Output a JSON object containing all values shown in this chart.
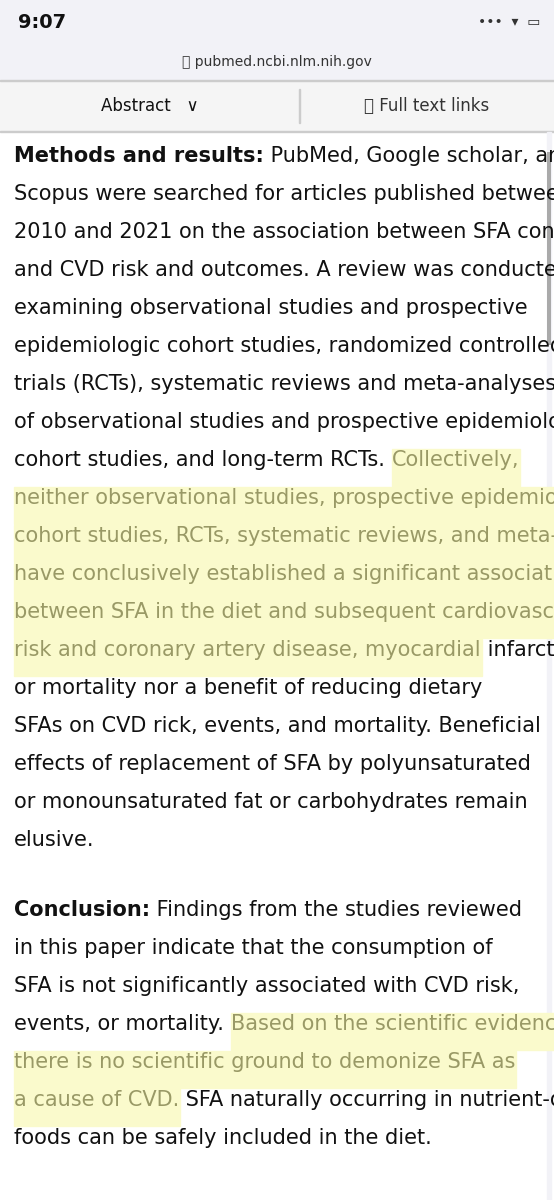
{
  "bg_color": "#ffffff",
  "status_bar_bg": "#f2f2f7",
  "status_bar_time": "9:07",
  "url_bar_bg": "#f2f2f7",
  "url_text": "pubmed.ncbi.nlm.nih.gov",
  "tab_bar_bg": "#f5f5f5",
  "tab_left": "Abstract",
  "tab_right": "Full text links",
  "highlight_color": "#fafacc",
  "highlight_text_color": "#999966",
  "normal_text_color": "#111111",
  "scrollbar_color": "#aaaaaa",
  "scrollbar_bg": "#f2f2f7",
  "separator_color": "#cccccc",
  "paragraphs": [
    {
      "segments": [
        {
          "text": "Methods and results:",
          "bold": true,
          "highlight": false
        },
        {
          "text": " PubMed, Google scholar, and Scopus were searched for articles published between 2010 and 2021 on the association between SFA consumption and CVD risk and outcomes. A review was conducted examining observational studies and prospective epidemiologic cohort studies, randomized controlled trials (RCTs), systematic reviews and meta-analyses of observational studies and prospective epidemiologic cohort studies, and long-term RCTs. ",
          "bold": false,
          "highlight": false
        },
        {
          "text": "Collectively, neither observational studies, prospective epidemiologic cohort studies, RCTs, systematic reviews, and meta-analyses have conclusively established a significant association between SFA in the diet and subsequent cardiovascular risk and coronary artery disease, myocardial",
          "bold": false,
          "highlight": true
        },
        {
          "text": " infarction, or mortality nor a benefit of reducing dietary SFAs on CVD rick, events, and mortality. Beneficial effects of replacement of SFA by polyunsaturated or monounsaturated fat or carbohydrates remain elusive.",
          "bold": false,
          "highlight": false
        }
      ]
    },
    {
      "segments": [
        {
          "text": "Conclusion:",
          "bold": true,
          "highlight": false
        },
        {
          "text": " Findings from the studies reviewed in this paper indicate that the consumption of SFA is not significantly associated with CVD risk, events, or mortality. ",
          "bold": false,
          "highlight": false
        },
        {
          "text": "Based on the scientific evidence, there is no scientific ground to demonize SFA as a cause of CVD.",
          "bold": false,
          "highlight": true
        },
        {
          "text": " SFA naturally occurring in nutrient-dense foods can be safely included in the diet.",
          "bold": false,
          "highlight": false
        }
      ]
    }
  ]
}
